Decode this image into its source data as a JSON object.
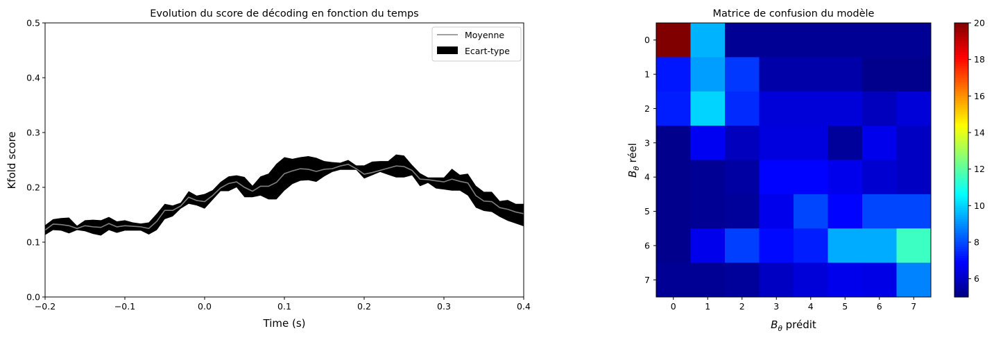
{
  "chart_data": [
    {
      "type": "line",
      "title": "Evolution du score de décoding en fonction du temps",
      "xlabel": "Time (s)",
      "ylabel": "Kfold score",
      "xlim": [
        -0.2,
        0.4
      ],
      "ylim": [
        0.0,
        0.5
      ],
      "xticks": [
        "−0.2",
        "−0.1",
        "0.0",
        "0.1",
        "0.2",
        "0.3",
        "0.4"
      ],
      "yticks": [
        "0.0",
        "0.1",
        "0.2",
        "0.3",
        "0.4",
        "0.5"
      ],
      "legend_position": "top-right",
      "colors": {
        "mean": "#808080",
        "std": "#000000"
      },
      "series": [
        {
          "name": "Moyenne",
          "style": "line",
          "x": [
            -0.2,
            -0.19,
            -0.18,
            -0.17,
            -0.16,
            -0.15,
            -0.14,
            -0.13,
            -0.12,
            -0.11,
            -0.1,
            -0.09,
            -0.08,
            -0.07,
            -0.06,
            -0.05,
            -0.04,
            -0.03,
            -0.02,
            -0.01,
            0.0,
            0.01,
            0.02,
            0.03,
            0.04,
            0.05,
            0.06,
            0.07,
            0.08,
            0.09,
            0.1,
            0.11,
            0.12,
            0.13,
            0.14,
            0.15,
            0.16,
            0.17,
            0.18,
            0.19,
            0.2,
            0.21,
            0.22,
            0.23,
            0.24,
            0.25,
            0.26,
            0.27,
            0.28,
            0.29,
            0.3,
            0.31,
            0.32,
            0.33,
            0.34,
            0.35,
            0.36,
            0.37,
            0.38,
            0.39,
            0.4
          ],
          "y": [
            0.122,
            0.133,
            0.132,
            0.13,
            0.125,
            0.13,
            0.128,
            0.127,
            0.134,
            0.128,
            0.13,
            0.129,
            0.128,
            0.125,
            0.138,
            0.158,
            0.158,
            0.166,
            0.182,
            0.176,
            0.174,
            0.185,
            0.199,
            0.207,
            0.21,
            0.2,
            0.193,
            0.202,
            0.202,
            0.209,
            0.225,
            0.23,
            0.234,
            0.233,
            0.229,
            0.233,
            0.234,
            0.239,
            0.242,
            0.234,
            0.224,
            0.227,
            0.231,
            0.235,
            0.239,
            0.238,
            0.231,
            0.215,
            0.214,
            0.212,
            0.21,
            0.215,
            0.211,
            0.208,
            0.185,
            0.175,
            0.174,
            0.163,
            0.16,
            0.155,
            0.152
          ]
        },
        {
          "name": "Ecart-type",
          "style": "band",
          "x": [
            -0.2,
            -0.19,
            -0.18,
            -0.17,
            -0.16,
            -0.15,
            -0.14,
            -0.13,
            -0.12,
            -0.11,
            -0.1,
            -0.09,
            -0.08,
            -0.07,
            -0.06,
            -0.05,
            -0.04,
            -0.03,
            -0.02,
            -0.01,
            0.0,
            0.01,
            0.02,
            0.03,
            0.04,
            0.05,
            0.06,
            0.07,
            0.08,
            0.09,
            0.1,
            0.11,
            0.12,
            0.13,
            0.14,
            0.15,
            0.16,
            0.17,
            0.18,
            0.19,
            0.2,
            0.21,
            0.22,
            0.23,
            0.24,
            0.25,
            0.26,
            0.27,
            0.28,
            0.29,
            0.3,
            0.31,
            0.32,
            0.33,
            0.34,
            0.35,
            0.36,
            0.37,
            0.38,
            0.39,
            0.4
          ],
          "lower": [
            0.113,
            0.122,
            0.121,
            0.116,
            0.122,
            0.12,
            0.115,
            0.112,
            0.122,
            0.117,
            0.121,
            0.121,
            0.121,
            0.114,
            0.122,
            0.142,
            0.147,
            0.161,
            0.17,
            0.167,
            0.161,
            0.177,
            0.193,
            0.193,
            0.2,
            0.182,
            0.182,
            0.185,
            0.178,
            0.178,
            0.194,
            0.206,
            0.212,
            0.213,
            0.21,
            0.22,
            0.228,
            0.232,
            0.232,
            0.232,
            0.216,
            0.222,
            0.228,
            0.223,
            0.218,
            0.218,
            0.222,
            0.202,
            0.208,
            0.198,
            0.196,
            0.194,
            0.194,
            0.185,
            0.163,
            0.157,
            0.155,
            0.146,
            0.139,
            0.134,
            0.129
          ],
          "upper": [
            0.131,
            0.142,
            0.144,
            0.145,
            0.13,
            0.14,
            0.141,
            0.14,
            0.146,
            0.138,
            0.14,
            0.136,
            0.134,
            0.136,
            0.152,
            0.17,
            0.167,
            0.172,
            0.193,
            0.185,
            0.188,
            0.195,
            0.21,
            0.22,
            0.222,
            0.219,
            0.203,
            0.22,
            0.225,
            0.243,
            0.255,
            0.252,
            0.255,
            0.257,
            0.254,
            0.248,
            0.246,
            0.245,
            0.25,
            0.24,
            0.24,
            0.247,
            0.248,
            0.248,
            0.26,
            0.258,
            0.241,
            0.226,
            0.218,
            0.218,
            0.218,
            0.234,
            0.223,
            0.225,
            0.203,
            0.192,
            0.192,
            0.175,
            0.177,
            0.17,
            0.17
          ]
        }
      ]
    },
    {
      "type": "heatmap",
      "title": "Matrice de confusion du modèle",
      "xlabel_base": "B",
      "xlabel_sub": "θ",
      "xlabel_rest": " prédit",
      "ylabel_base": "B",
      "ylabel_sub": "θ",
      "ylabel_rest": " réel",
      "xticks": [
        "0",
        "1",
        "2",
        "3",
        "4",
        "5",
        "6",
        "7"
      ],
      "yticks": [
        "0",
        "1",
        "2",
        "3",
        "4",
        "5",
        "6",
        "7"
      ],
      "colormap": "jet",
      "vmin": 5,
      "vmax": 20,
      "colorbar_ticks": [
        "6",
        "8",
        "10",
        "12",
        "14",
        "16",
        "18",
        "20"
      ],
      "colorbar_values": [
        6,
        8,
        10,
        12,
        14,
        16,
        18,
        20
      ],
      "values": [
        [
          20.0,
          9.5,
          5.3,
          5.3,
          5.3,
          5.3,
          5.3,
          5.3
        ],
        [
          7.2,
          9.2,
          7.7,
          5.6,
          5.6,
          5.6,
          5.2,
          5.2
        ],
        [
          7.3,
          10.0,
          7.5,
          6.3,
          6.3,
          6.3,
          5.9,
          6.3
        ],
        [
          5.2,
          6.7,
          5.9,
          6.4,
          6.4,
          5.4,
          6.6,
          6.0
        ],
        [
          5.2,
          5.3,
          5.5,
          6.9,
          6.9,
          6.6,
          6.2,
          6.0
        ],
        [
          5.2,
          5.3,
          5.4,
          6.6,
          7.9,
          6.9,
          7.9,
          7.9
        ],
        [
          5.2,
          6.6,
          7.8,
          7.0,
          7.3,
          9.4,
          9.4,
          11.5
        ],
        [
          5.3,
          5.3,
          5.4,
          6.0,
          6.3,
          6.6,
          6.5,
          8.8
        ]
      ]
    }
  ]
}
